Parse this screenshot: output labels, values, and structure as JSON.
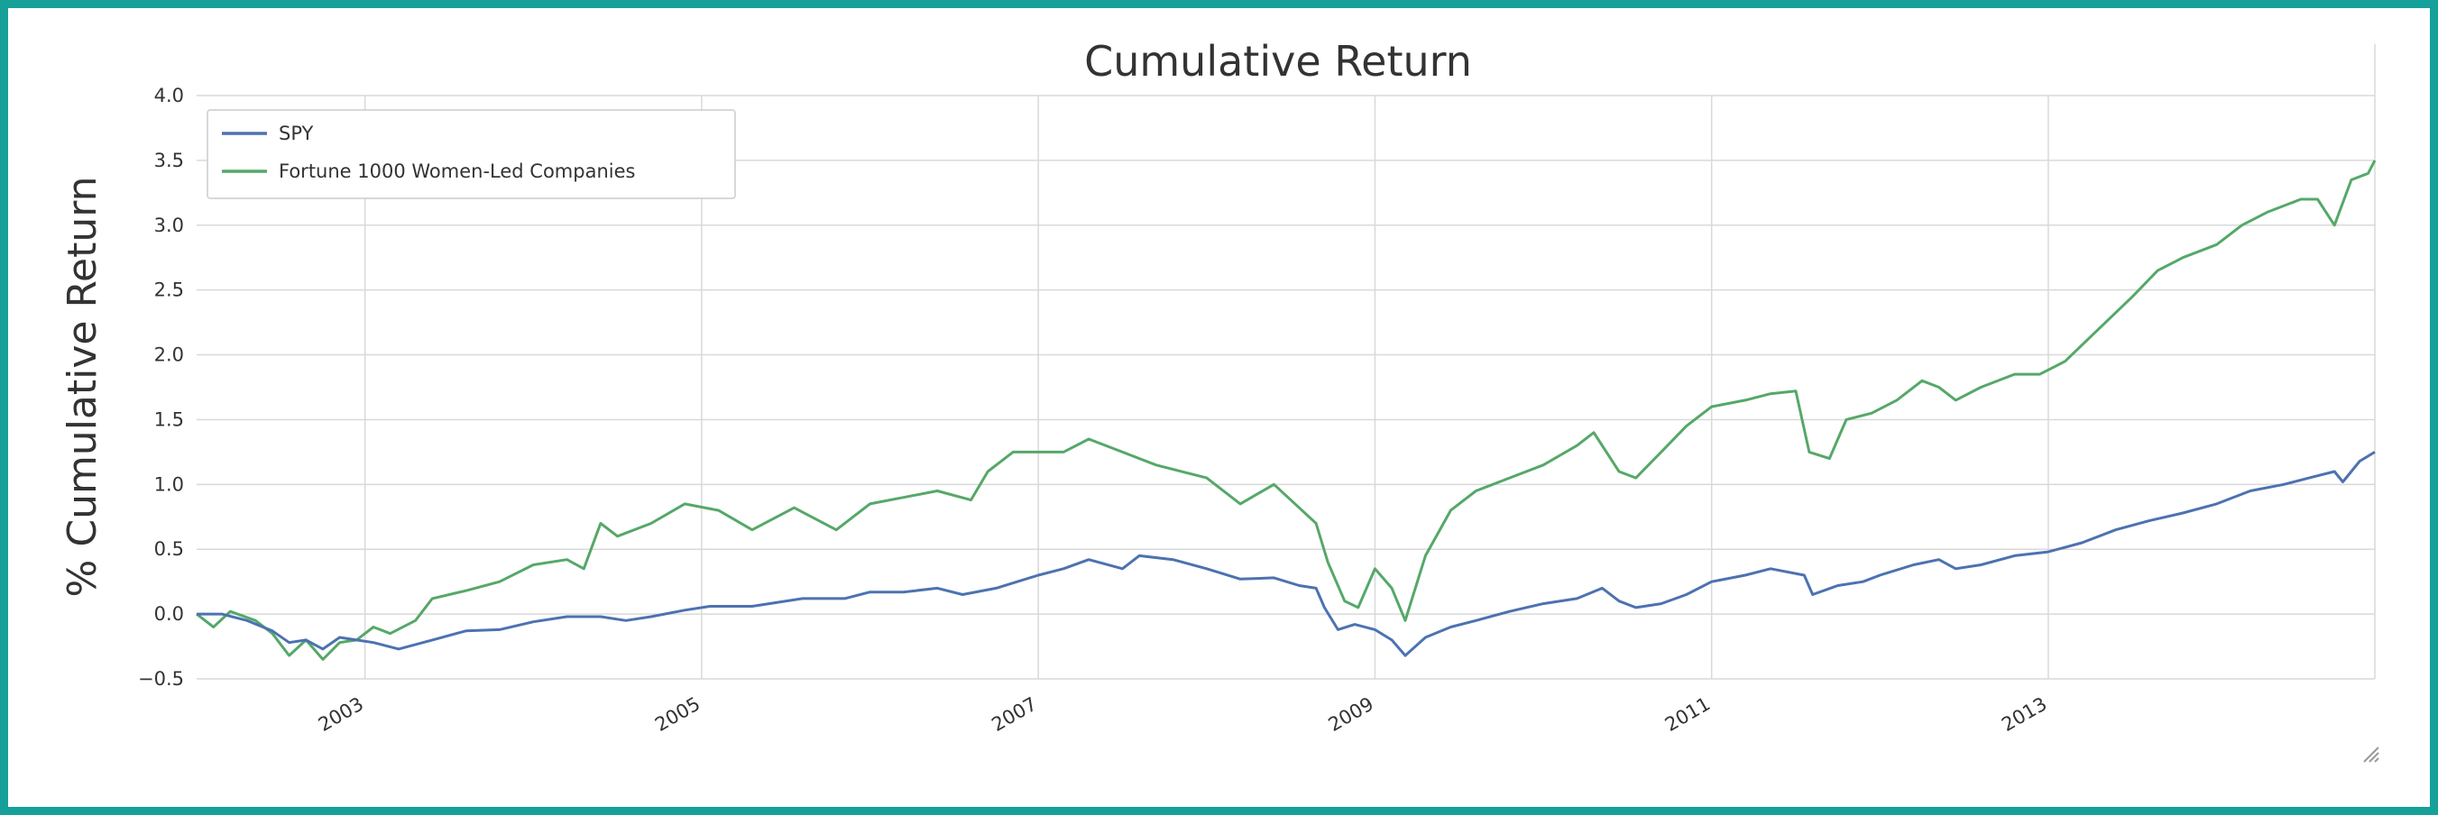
{
  "chart_data": {
    "type": "line",
    "title": "Cumulative Return",
    "xlabel": "",
    "ylabel": "% Cumulative Return",
    "xlim": [
      2002.0,
      2014.94
    ],
    "ylim": [
      -0.5,
      4.0
    ],
    "xticks": [
      {
        "value": 2003,
        "label": "2003"
      },
      {
        "value": 2005,
        "label": "2005"
      },
      {
        "value": 2007,
        "label": "2007"
      },
      {
        "value": 2009,
        "label": "2009"
      },
      {
        "value": 2011,
        "label": "2011"
      },
      {
        "value": 2013,
        "label": "2013"
      }
    ],
    "yticks": [
      {
        "value": -0.5,
        "label": "−0.5"
      },
      {
        "value": 0.0,
        "label": "0.0"
      },
      {
        "value": 0.5,
        "label": "0.5"
      },
      {
        "value": 1.0,
        "label": "1.0"
      },
      {
        "value": 1.5,
        "label": "1.5"
      },
      {
        "value": 2.0,
        "label": "2.0"
      },
      {
        "value": 2.5,
        "label": "2.5"
      },
      {
        "value": 3.0,
        "label": "3.0"
      },
      {
        "value": 3.5,
        "label": "3.5"
      },
      {
        "value": 4.0,
        "label": "4.0"
      }
    ],
    "grid": true,
    "legend_position": "top-left",
    "series": [
      {
        "name": "SPY",
        "color": "#4c72b0",
        "points": [
          [
            2002.0,
            0.0
          ],
          [
            2002.15,
            0.0
          ],
          [
            2002.3,
            -0.05
          ],
          [
            2002.45,
            -0.13
          ],
          [
            2002.55,
            -0.22
          ],
          [
            2002.65,
            -0.2
          ],
          [
            2002.75,
            -0.27
          ],
          [
            2002.85,
            -0.18
          ],
          [
            2002.95,
            -0.2
          ],
          [
            2003.05,
            -0.22
          ],
          [
            2003.2,
            -0.27
          ],
          [
            2003.4,
            -0.2
          ],
          [
            2003.6,
            -0.13
          ],
          [
            2003.8,
            -0.12
          ],
          [
            2004.0,
            -0.06
          ],
          [
            2004.2,
            -0.02
          ],
          [
            2004.4,
            -0.02
          ],
          [
            2004.55,
            -0.05
          ],
          [
            2004.7,
            -0.02
          ],
          [
            2004.9,
            0.03
          ],
          [
            2005.05,
            0.06
          ],
          [
            2005.3,
            0.06
          ],
          [
            2005.6,
            0.12
          ],
          [
            2005.85,
            0.12
          ],
          [
            2006.0,
            0.17
          ],
          [
            2006.2,
            0.17
          ],
          [
            2006.4,
            0.2
          ],
          [
            2006.55,
            0.15
          ],
          [
            2006.75,
            0.2
          ],
          [
            2007.0,
            0.3
          ],
          [
            2007.15,
            0.35
          ],
          [
            2007.3,
            0.42
          ],
          [
            2007.5,
            0.35
          ],
          [
            2007.6,
            0.45
          ],
          [
            2007.8,
            0.42
          ],
          [
            2008.0,
            0.35
          ],
          [
            2008.2,
            0.27
          ],
          [
            2008.4,
            0.28
          ],
          [
            2008.55,
            0.22
          ],
          [
            2008.65,
            0.2
          ],
          [
            2008.7,
            0.05
          ],
          [
            2008.78,
            -0.12
          ],
          [
            2008.88,
            -0.08
          ],
          [
            2009.0,
            -0.12
          ],
          [
            2009.1,
            -0.2
          ],
          [
            2009.18,
            -0.32
          ],
          [
            2009.3,
            -0.18
          ],
          [
            2009.45,
            -0.1
          ],
          [
            2009.6,
            -0.05
          ],
          [
            2009.8,
            0.02
          ],
          [
            2010.0,
            0.08
          ],
          [
            2010.2,
            0.12
          ],
          [
            2010.35,
            0.2
          ],
          [
            2010.45,
            0.1
          ],
          [
            2010.55,
            0.05
          ],
          [
            2010.7,
            0.08
          ],
          [
            2010.85,
            0.15
          ],
          [
            2011.0,
            0.25
          ],
          [
            2011.2,
            0.3
          ],
          [
            2011.35,
            0.35
          ],
          [
            2011.55,
            0.3
          ],
          [
            2011.6,
            0.15
          ],
          [
            2011.75,
            0.22
          ],
          [
            2011.9,
            0.25
          ],
          [
            2012.0,
            0.3
          ],
          [
            2012.2,
            0.38
          ],
          [
            2012.35,
            0.42
          ],
          [
            2012.45,
            0.35
          ],
          [
            2012.6,
            0.38
          ],
          [
            2012.8,
            0.45
          ],
          [
            2013.0,
            0.48
          ],
          [
            2013.2,
            0.55
          ],
          [
            2013.4,
            0.65
          ],
          [
            2013.6,
            0.72
          ],
          [
            2013.8,
            0.78
          ],
          [
            2014.0,
            0.85
          ],
          [
            2014.2,
            0.95
          ],
          [
            2014.4,
            1.0
          ],
          [
            2014.55,
            1.05
          ],
          [
            2014.7,
            1.1
          ],
          [
            2014.75,
            1.02
          ],
          [
            2014.85,
            1.18
          ],
          [
            2014.94,
            1.25
          ]
        ]
      },
      {
        "name": "Fortune 1000 Women-Led Companies",
        "color": "#55a868",
        "points": [
          [
            2002.0,
            0.0
          ],
          [
            2002.1,
            -0.1
          ],
          [
            2002.2,
            0.02
          ],
          [
            2002.35,
            -0.05
          ],
          [
            2002.45,
            -0.15
          ],
          [
            2002.55,
            -0.32
          ],
          [
            2002.65,
            -0.2
          ],
          [
            2002.75,
            -0.35
          ],
          [
            2002.85,
            -0.22
          ],
          [
            2002.95,
            -0.2
          ],
          [
            2003.05,
            -0.1
          ],
          [
            2003.15,
            -0.15
          ],
          [
            2003.3,
            -0.05
          ],
          [
            2003.4,
            0.12
          ],
          [
            2003.6,
            0.18
          ],
          [
            2003.8,
            0.25
          ],
          [
            2004.0,
            0.38
          ],
          [
            2004.2,
            0.42
          ],
          [
            2004.3,
            0.35
          ],
          [
            2004.4,
            0.7
          ],
          [
            2004.5,
            0.6
          ],
          [
            2004.7,
            0.7
          ],
          [
            2004.9,
            0.85
          ],
          [
            2005.1,
            0.8
          ],
          [
            2005.3,
            0.65
          ],
          [
            2005.55,
            0.82
          ],
          [
            2005.8,
            0.65
          ],
          [
            2006.0,
            0.85
          ],
          [
            2006.2,
            0.9
          ],
          [
            2006.4,
            0.95
          ],
          [
            2006.6,
            0.88
          ],
          [
            2006.7,
            1.1
          ],
          [
            2006.85,
            1.25
          ],
          [
            2007.0,
            1.25
          ],
          [
            2007.15,
            1.25
          ],
          [
            2007.3,
            1.35
          ],
          [
            2007.5,
            1.25
          ],
          [
            2007.7,
            1.15
          ],
          [
            2008.0,
            1.05
          ],
          [
            2008.2,
            0.85
          ],
          [
            2008.4,
            1.0
          ],
          [
            2008.55,
            0.82
          ],
          [
            2008.65,
            0.7
          ],
          [
            2008.72,
            0.4
          ],
          [
            2008.82,
            0.1
          ],
          [
            2008.9,
            0.05
          ],
          [
            2009.0,
            0.35
          ],
          [
            2009.1,
            0.2
          ],
          [
            2009.18,
            -0.05
          ],
          [
            2009.3,
            0.45
          ],
          [
            2009.45,
            0.8
          ],
          [
            2009.6,
            0.95
          ],
          [
            2009.8,
            1.05
          ],
          [
            2010.0,
            1.15
          ],
          [
            2010.2,
            1.3
          ],
          [
            2010.3,
            1.4
          ],
          [
            2010.45,
            1.1
          ],
          [
            2010.55,
            1.05
          ],
          [
            2010.7,
            1.25
          ],
          [
            2010.85,
            1.45
          ],
          [
            2011.0,
            1.6
          ],
          [
            2011.2,
            1.65
          ],
          [
            2011.35,
            1.7
          ],
          [
            2011.5,
            1.72
          ],
          [
            2011.58,
            1.25
          ],
          [
            2011.7,
            1.2
          ],
          [
            2011.8,
            1.5
          ],
          [
            2011.95,
            1.55
          ],
          [
            2012.1,
            1.65
          ],
          [
            2012.25,
            1.8
          ],
          [
            2012.35,
            1.75
          ],
          [
            2012.45,
            1.65
          ],
          [
            2012.6,
            1.75
          ],
          [
            2012.8,
            1.85
          ],
          [
            2012.95,
            1.85
          ],
          [
            2013.1,
            1.95
          ],
          [
            2013.3,
            2.2
          ],
          [
            2013.5,
            2.45
          ],
          [
            2013.65,
            2.65
          ],
          [
            2013.8,
            2.75
          ],
          [
            2014.0,
            2.85
          ],
          [
            2014.15,
            3.0
          ],
          [
            2014.3,
            3.1
          ],
          [
            2014.5,
            3.2
          ],
          [
            2014.6,
            3.2
          ],
          [
            2014.7,
            3.0
          ],
          [
            2014.8,
            3.35
          ],
          [
            2014.9,
            3.4
          ],
          [
            2014.94,
            3.5
          ]
        ]
      }
    ]
  }
}
